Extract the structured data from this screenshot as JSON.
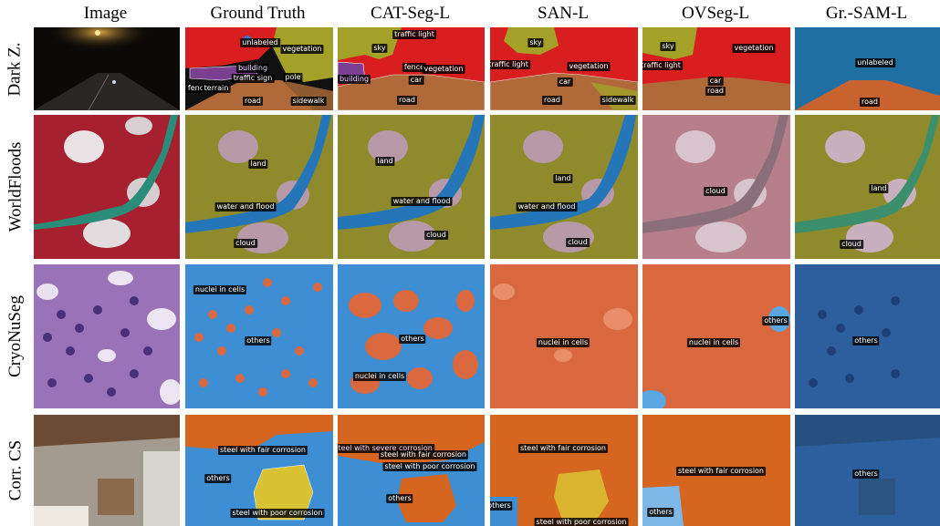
{
  "columns": [
    "Image",
    "Ground Truth",
    "CAT-Seg-L",
    "SAN-L",
    "OVSeg-L",
    "Gr.-SAM-L"
  ],
  "rows": [
    "Dark Z.",
    "WorldFloods",
    "CryoNuSeg",
    "Corr. CS"
  ],
  "labels": {
    "darkz": {
      "gt": [
        "unlabeled",
        "vegetation",
        "building",
        "traffic sign",
        "pole",
        "fence",
        "road",
        "sidewalk",
        "terrain"
      ],
      "catseg": [
        "traffic light",
        "sky",
        "fence",
        "vegetation",
        "car",
        "building",
        "road"
      ],
      "san": [
        "sky",
        "traffic light",
        "vegetation",
        "car",
        "road",
        "sidewalk"
      ],
      "ovseg": [
        "sky",
        "vegetation",
        "traffic light",
        "car",
        "road"
      ],
      "grsam": [
        "unlabeled",
        "road"
      ]
    },
    "worldfloods": {
      "gt": [
        "land",
        "water and flood",
        "cloud"
      ],
      "catseg": [
        "land",
        "water and flood",
        "cloud"
      ],
      "san": [
        "land",
        "water and flood",
        "cloud"
      ],
      "ovseg": [
        "cloud"
      ],
      "grsam": [
        "land",
        "cloud"
      ]
    },
    "cryonuseg": {
      "gt": [
        "nuclei in cells",
        "others"
      ],
      "catseg": [
        "others",
        "nuclei in cells"
      ],
      "san": [
        "nuclei in cells"
      ],
      "ovseg": [
        "others",
        "nuclei in cells"
      ],
      "grsam": [
        "others"
      ]
    },
    "corrcs": {
      "gt": [
        "steel with fair corrosion",
        "others",
        "steel with poor corrosion"
      ],
      "catseg": [
        "steel with severe corrosion",
        "steel with fair corrosion",
        "steel with poor corrosion",
        "others"
      ],
      "san": [
        "steel with fair corrosion",
        "others",
        "steel with poor corrosion"
      ],
      "ovseg": [
        "steel with fair corrosion",
        "others"
      ],
      "grsam": [
        "others"
      ]
    }
  },
  "colors": {
    "night": "#0c0a08",
    "sky_red": "#d81e1e",
    "veg_olive": "#a3a128",
    "road_brown": "#b06a3a",
    "building_purple": "#7a3f91",
    "blue_unlabeled": "#1f6fa3",
    "land_olive": "#8f8a2c",
    "water_blue": "#2576b8",
    "cloud_mauve": "#b799a8",
    "false_red": "#a6202f",
    "tissue_purple": "#9a72b8",
    "nuclei_orange": "#d9683f",
    "others_blue": "#3d8ed2",
    "dark_blue": "#2d5f9e",
    "corr_orange": "#d5651f",
    "corr_yellow": "#d9c233"
  }
}
